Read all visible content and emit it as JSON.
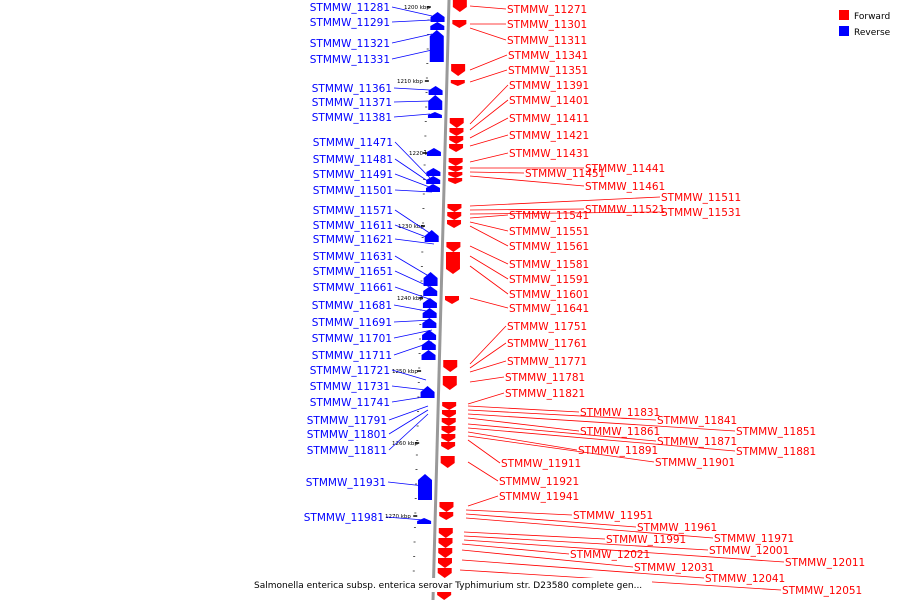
{
  "legend": {
    "forward_label": "Forward",
    "reverse_label": "Reverse",
    "forward_color": "#ff0000",
    "reverse_color": "#0000ff"
  },
  "caption": "Salmonella enterica subsp. enterica serovar Typhimurium str. D23580 complete gen...",
  "colors": {
    "backbone": "#999999",
    "tick": "#000000"
  },
  "ticks": [
    "1200 kbp",
    "1210 kbp",
    "1220 kbp",
    "1230 kbp",
    "1240 kbp",
    "1250 kbp",
    "1260 kbp",
    "1270 kbp"
  ],
  "reverse_genes": [
    "STMMW_11281",
    "STMMW_11291",
    "STMMW_11321",
    "STMMW_11331",
    "STMMW_11361",
    "STMMW_11371",
    "STMMW_11381",
    "STMMW_11471",
    "STMMW_11481",
    "STMMW_11491",
    "STMMW_11501",
    "STMMW_11571",
    "STMMW_11611",
    "STMMW_11621",
    "STMMW_11631",
    "STMMW_11651",
    "STMMW_11661",
    "STMMW_11681",
    "STMMW_11691",
    "STMMW_11701",
    "STMMW_11711",
    "STMMW_11721",
    "STMMW_11731",
    "STMMW_11741",
    "STMMW_11791",
    "STMMW_11801",
    "STMMW_11811",
    "STMMW_11931",
    "STMMW_11981"
  ],
  "forward_genes": [
    "STMMW_11271",
    "STMMW_11301",
    "STMMW_11311",
    "STMMW_11341",
    "STMMW_11351",
    "STMMW_11391",
    "STMMW_11401",
    "STMMW_11411",
    "STMMW_11421",
    "STMMW_11431",
    "STMMW_11441",
    "STMMW_11451",
    "STMMW_11461",
    "STMMW_11511",
    "STMMW_11521",
    "STMMW_11531",
    "STMMW_11541",
    "STMMW_11551",
    "STMMW_11561",
    "STMMW_11581",
    "STMMW_11591",
    "STMMW_11601",
    "STMMW_11641",
    "STMMW_11751",
    "STMMW_11761",
    "STMMW_11771",
    "STMMW_11781",
    "STMMW_11821",
    "STMMW_11831",
    "STMMW_11841",
    "STMMW_11851",
    "STMMW_11861",
    "STMMW_11871",
    "STMMW_11881",
    "STMMW_11891",
    "STMMW_11901",
    "STMMW_11911",
    "STMMW_11921",
    "STMMW_11941",
    "STMMW_11951",
    "STMMW_11961",
    "STMMW_11971",
    "STMMW_11991",
    "STMMW_12001",
    "STMMW_12011",
    "STMMW_12021",
    "STMMW_12031",
    "STMMW_12041",
    "STMMW_12051"
  ]
}
